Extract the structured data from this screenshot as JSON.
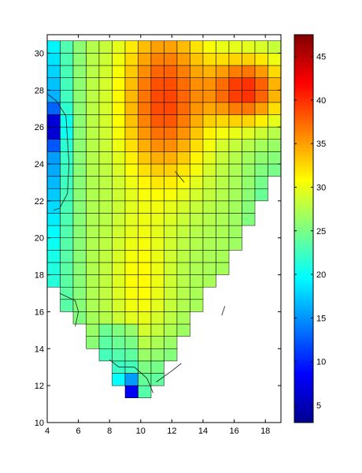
{
  "chart_data": {
    "type": "heatmap",
    "title": "",
    "xlabel": "",
    "ylabel": "",
    "xlim": [
      4,
      19
    ],
    "ylim": [
      10,
      31
    ],
    "x_ticks": [
      "4",
      "6",
      "8",
      "10",
      "12",
      "14",
      "16",
      "18"
    ],
    "y_ticks": [
      "10",
      "12",
      "14",
      "16",
      "18",
      "20",
      "22",
      "24",
      "26",
      "28",
      "30"
    ],
    "colorbar": {
      "colormap": "jet",
      "range": [
        3,
        47.5
      ],
      "ticks": [
        "5",
        "10",
        "15",
        "20",
        "25",
        "30",
        "35",
        "40",
        "45"
      ]
    },
    "grid_step": {
      "x": 0.8333,
      "y": 0.6667
    },
    "masked_value": null,
    "grid": true,
    "legend": "none"
  }
}
